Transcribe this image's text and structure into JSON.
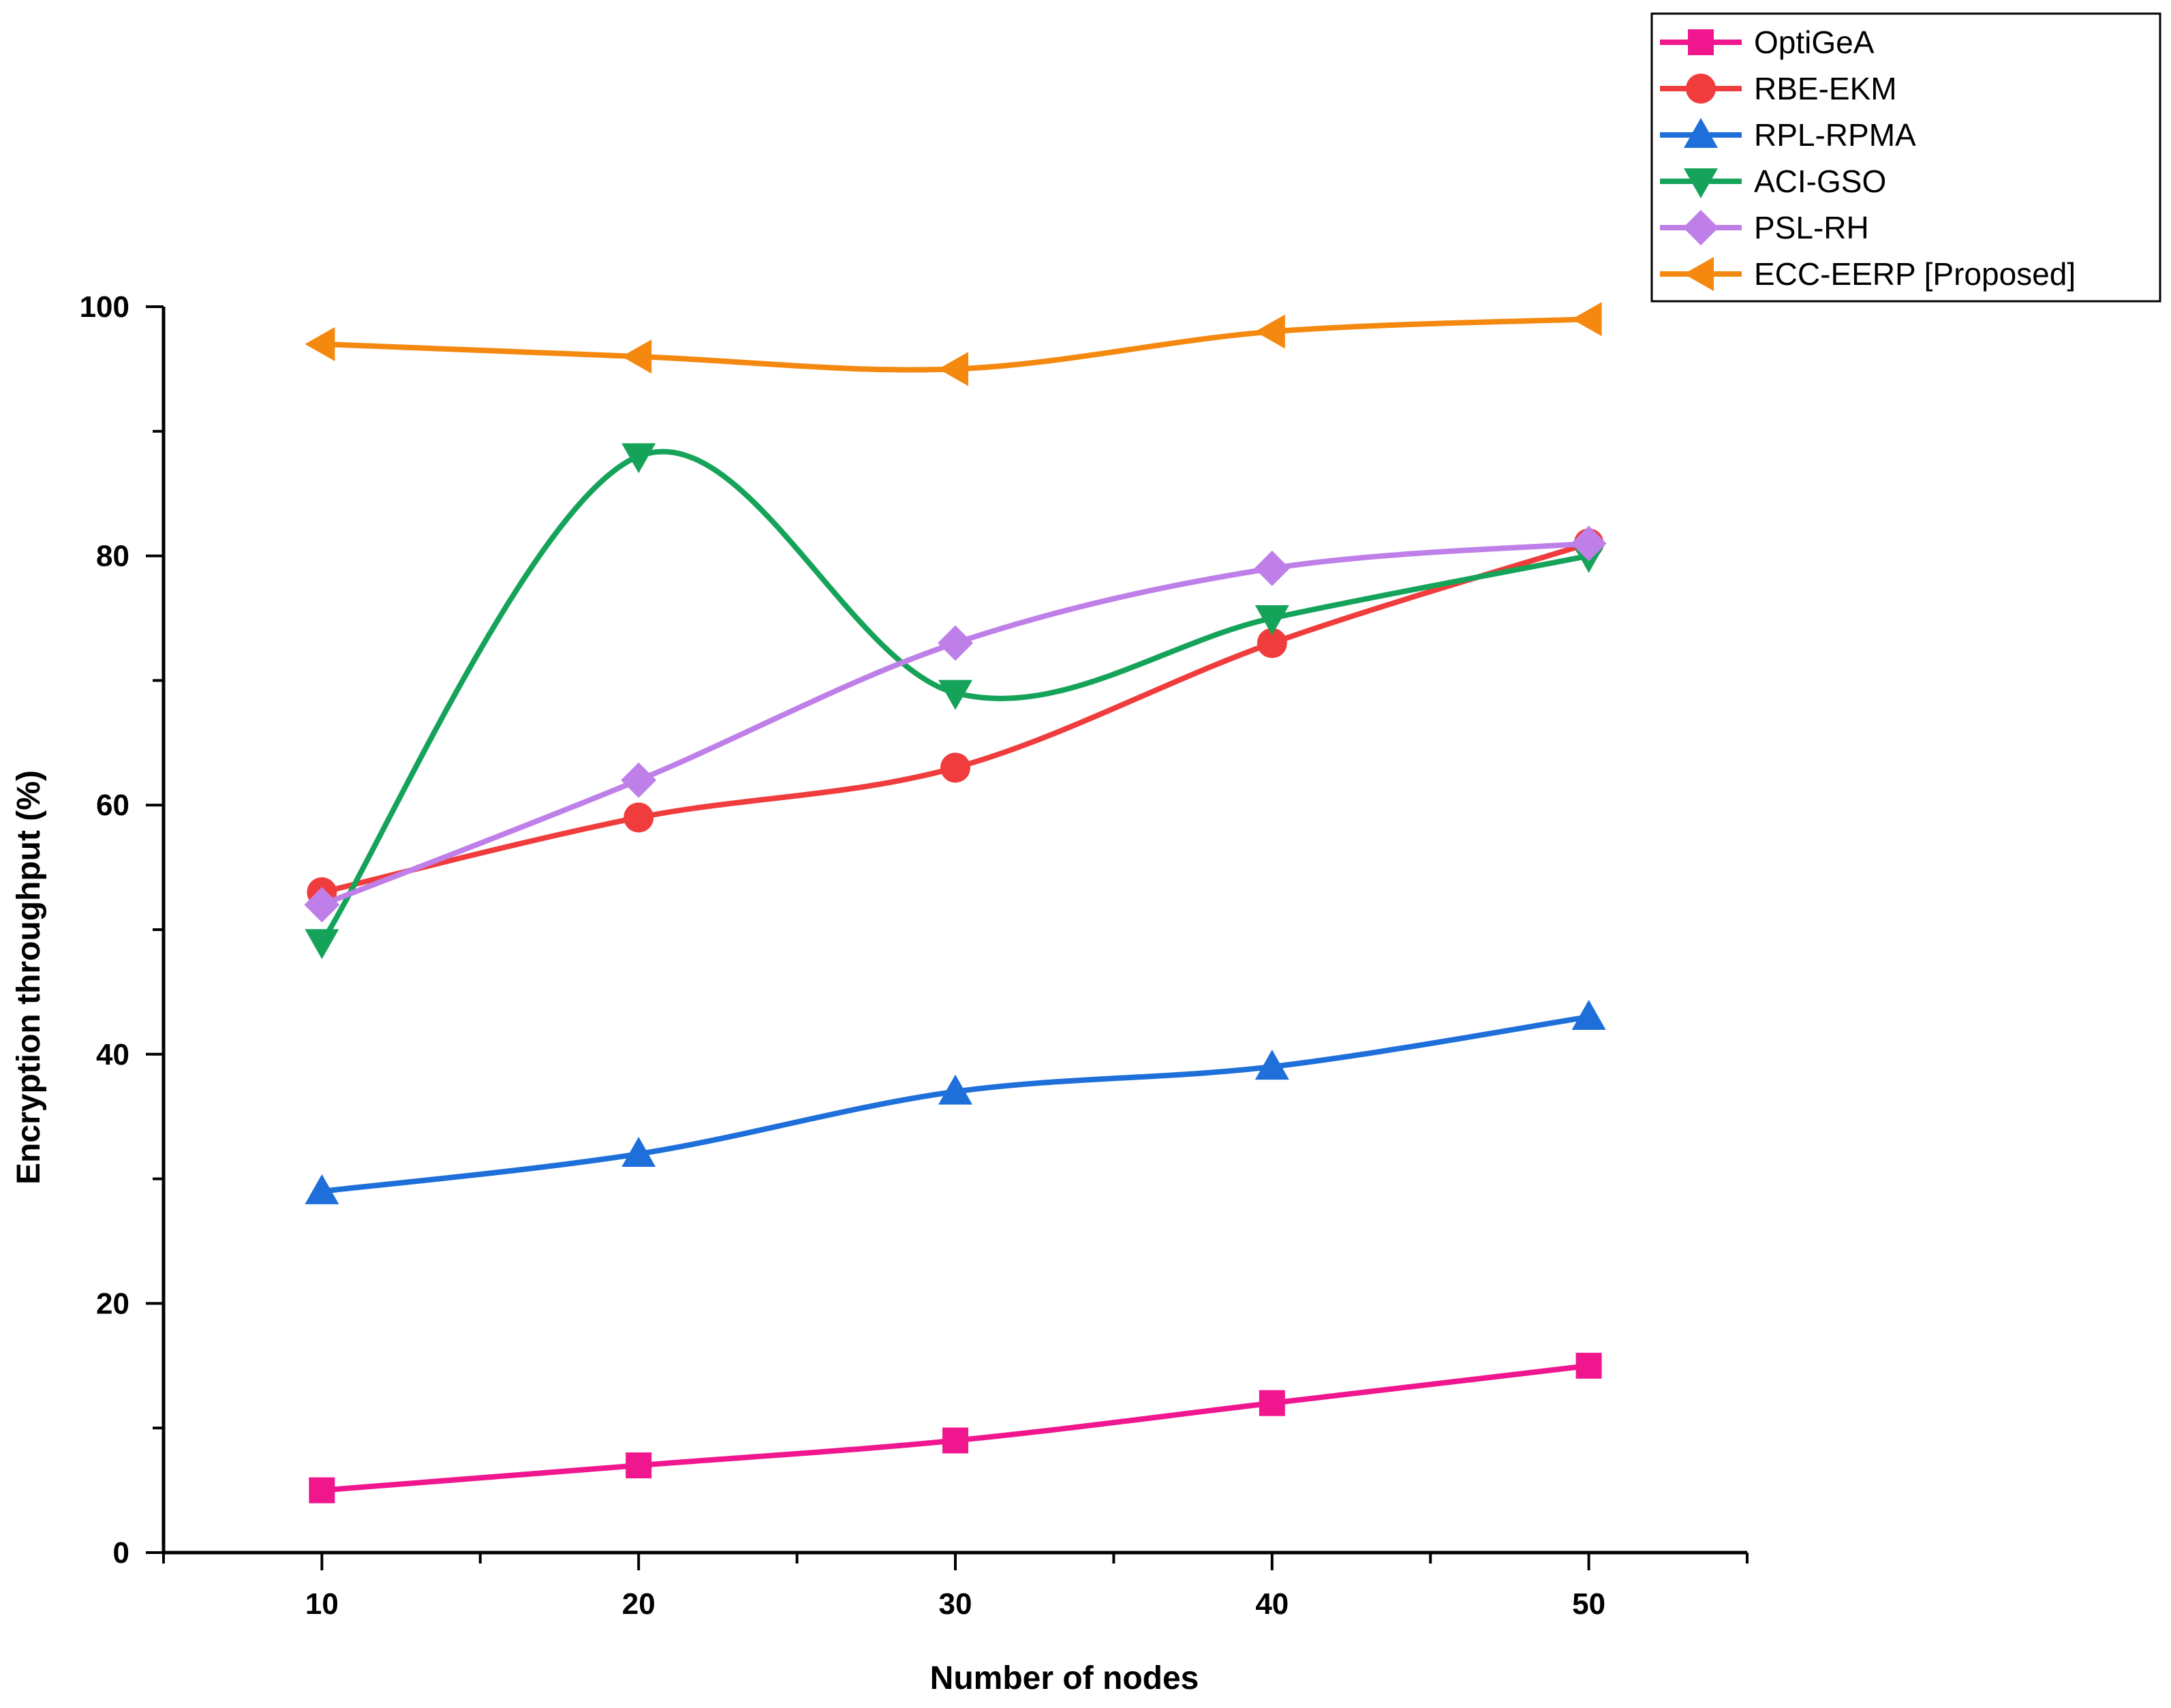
{
  "chart_data": {
    "type": "line",
    "title": "",
    "xlabel": "Number of nodes",
    "ylabel": "Encryption throughput (%)",
    "x": [
      10,
      20,
      30,
      40,
      50
    ],
    "xlim": [
      5,
      55
    ],
    "ylim": [
      0,
      100
    ],
    "xticks": [
      10,
      20,
      30,
      40,
      50
    ],
    "yticks": [
      0,
      20,
      40,
      60,
      80,
      100
    ],
    "grid": false,
    "legend_position": "top-right",
    "series": [
      {
        "name": "OptiGeA",
        "marker": "square",
        "color": "#f0168e",
        "values": [
          5,
          7,
          9,
          12,
          15
        ]
      },
      {
        "name": "RBE-EKM",
        "marker": "circle",
        "color": "#f03c3c",
        "values": [
          53,
          59,
          63,
          73,
          81
        ]
      },
      {
        "name": "RPL-RPMA",
        "marker": "triangle-up",
        "color": "#1e6fd9",
        "values": [
          29,
          32,
          37,
          39,
          43
        ]
      },
      {
        "name": "ACI-GSO",
        "marker": "triangle-down",
        "color": "#15a35a",
        "values": [
          49,
          88,
          69,
          75,
          80
        ]
      },
      {
        "name": "PSL-RH",
        "marker": "diamond",
        "color": "#bf7fe8",
        "values": [
          52,
          62,
          73,
          79,
          81
        ]
      },
      {
        "name": "ECC-EERP [Proposed]",
        "marker": "triangle-left",
        "color": "#f5880f",
        "values": [
          97,
          96,
          95,
          98,
          99
        ]
      }
    ]
  }
}
